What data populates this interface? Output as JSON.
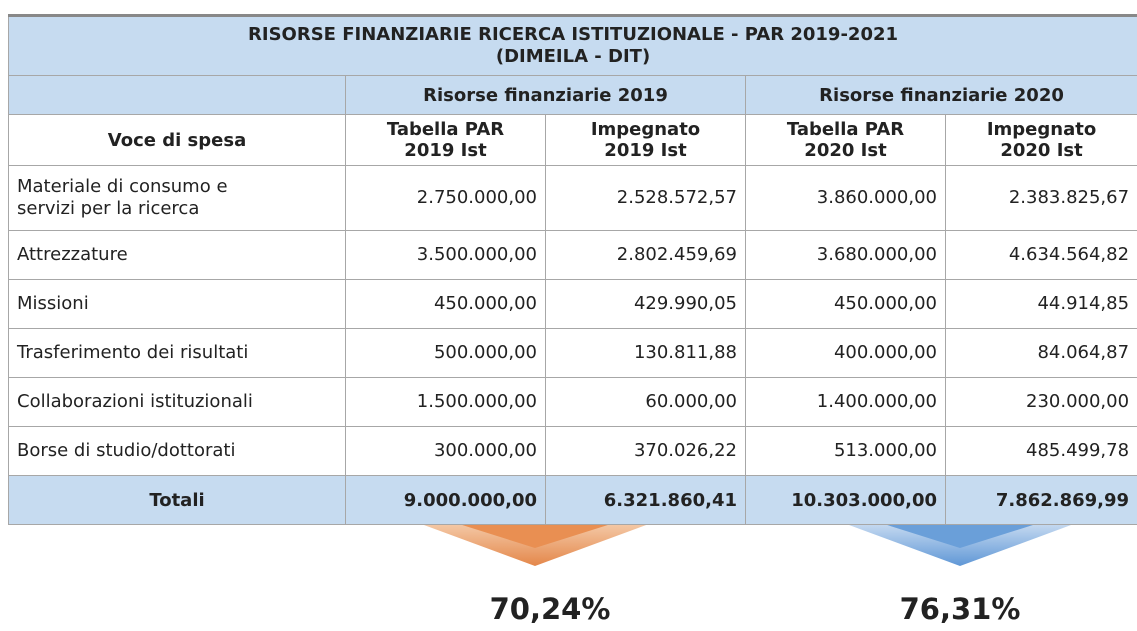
{
  "table": {
    "title": [
      "RISORSE FINANZIARIE RICERCA ISTITUZIONALE - PAR 2019-2021",
      "(DIMEILA - DIT)"
    ],
    "groups": [
      "Risorse finanziarie  2019",
      "Risorse finanziarie  2020"
    ],
    "columns": [
      [
        "Voce di spesa"
      ],
      [
        "Tabella PAR",
        "2019 Ist"
      ],
      [
        "Impegnato",
        "2019 Ist"
      ],
      [
        "Tabella PAR",
        "2020 Ist"
      ],
      [
        "Impegnato",
        "2020 Ist"
      ]
    ],
    "rows": [
      [
        [
          "Materiale di consumo e",
          "servizi per la ricerca"
        ],
        "2.750.000,00",
        "2.528.572,57",
        "3.860.000,00",
        "2.383.825,67"
      ],
      [
        [
          "Attrezzature"
        ],
        "3.500.000,00",
        "2.802.459,69",
        "3.680.000,00",
        "4.634.564,82"
      ],
      [
        [
          "Missioni"
        ],
        "450.000,00",
        "429.990,05",
        "450.000,00",
        "44.914,85"
      ],
      [
        [
          "Trasferimento dei risultati"
        ],
        "500.000,00",
        "130.811,88",
        "400.000,00",
        "84.064,87"
      ],
      [
        [
          "Collaborazioni istituzionali"
        ],
        "1.500.000,00",
        "60.000,00",
        "1.400.000,00",
        "230.000,00"
      ],
      [
        [
          "Borse di studio/dottorati"
        ],
        "300.000,00",
        "370.026,22",
        "513.000,00",
        "485.499,78"
      ]
    ],
    "totals": [
      "Totali",
      "9.000.000,00",
      "6.321.860,41",
      "10.303.000,00",
      "7.862.869,99"
    ]
  },
  "percentages": [
    "70,24%",
    "76,31%"
  ]
}
